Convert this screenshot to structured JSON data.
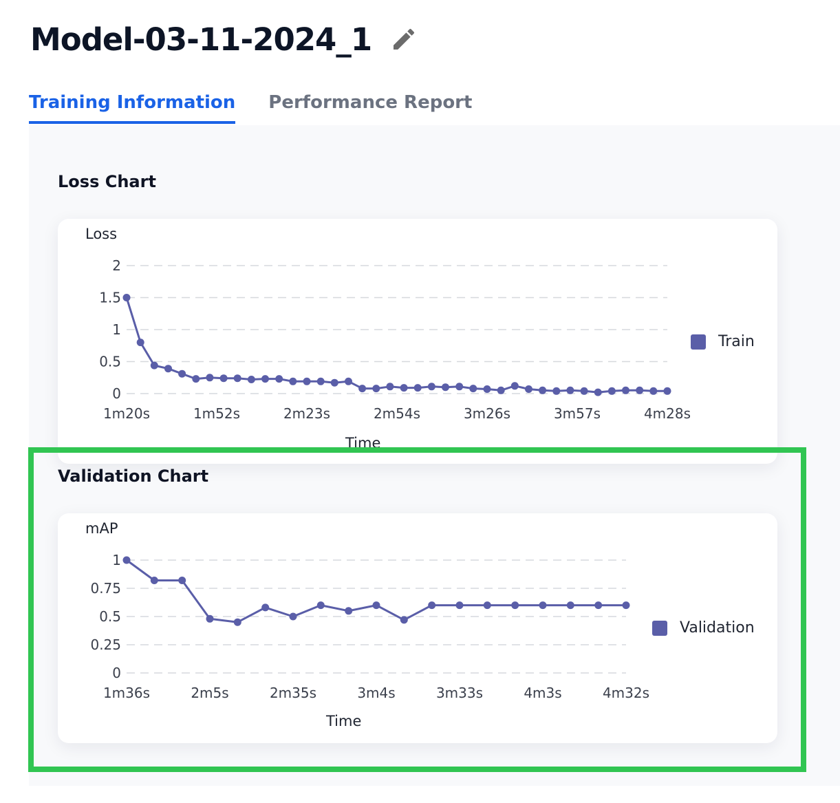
{
  "model": {
    "title": "Model-03-11-2024_1",
    "edit_icon": "pencil-icon"
  },
  "tabs": [
    {
      "label": "Training Information",
      "active": true
    },
    {
      "label": "Performance Report",
      "active": false
    }
  ],
  "colors": {
    "accent": "#1a62e6",
    "series": "#5a5ea8",
    "highlight": "#31c552"
  },
  "loss_section": {
    "title": "Loss Chart"
  },
  "validation_section": {
    "title": "Validation Chart"
  },
  "chart_data": [
    {
      "type": "line",
      "title": "Loss Chart",
      "ylabel": "Loss",
      "xlabel": "Time",
      "ylim": [
        0,
        2
      ],
      "yticks": [
        "2",
        "1.5",
        "1",
        "0.5",
        "0"
      ],
      "xticks": [
        "1m20s",
        "1m52s",
        "2m23s",
        "2m54s",
        "3m26s",
        "3m57s",
        "4m28s"
      ],
      "legend_position": "right",
      "grid": true,
      "series": [
        {
          "name": "Train",
          "values": [
            1.5,
            0.8,
            0.44,
            0.39,
            0.31,
            0.23,
            0.25,
            0.24,
            0.24,
            0.22,
            0.23,
            0.23,
            0.19,
            0.19,
            0.19,
            0.17,
            0.19,
            0.08,
            0.08,
            0.11,
            0.09,
            0.09,
            0.11,
            0.1,
            0.11,
            0.08,
            0.07,
            0.05,
            0.12,
            0.07,
            0.05,
            0.04,
            0.05,
            0.04,
            0.02,
            0.04,
            0.05,
            0.05,
            0.04,
            0.04
          ]
        }
      ]
    },
    {
      "type": "line",
      "title": "Validation Chart",
      "ylabel": "mAP",
      "xlabel": "Time",
      "ylim": [
        0,
        1
      ],
      "yticks": [
        "1",
        "0.75",
        "0.5",
        "0.25",
        "0"
      ],
      "xticks": [
        "1m36s",
        "2m5s",
        "2m35s",
        "3m4s",
        "3m33s",
        "4m3s",
        "4m32s"
      ],
      "legend_position": "right",
      "grid": true,
      "series": [
        {
          "name": "Validation",
          "values": [
            1.0,
            0.82,
            0.82,
            0.48,
            0.45,
            0.58,
            0.5,
            0.6,
            0.55,
            0.6,
            0.47,
            0.6,
            0.6,
            0.6,
            0.6,
            0.6,
            0.6,
            0.6,
            0.6
          ]
        }
      ]
    }
  ]
}
